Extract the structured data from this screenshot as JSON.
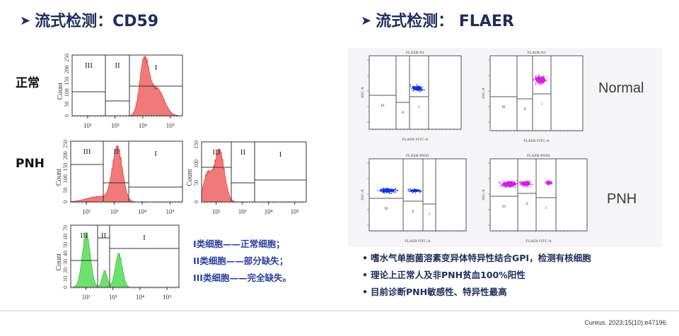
{
  "left": {
    "title": "流式检测：CD59",
    "row_labels": {
      "normal": "正常",
      "pnh": "PNH"
    },
    "histogram": {
      "ylabel": "Count",
      "gates": [
        "III",
        "II",
        "I"
      ],
      "xticks": [
        "10²",
        "10³",
        "10⁴",
        "10⁵"
      ],
      "yticks_red": [
        "0",
        "50",
        "100",
        "150",
        "200",
        "250"
      ],
      "yticks_red_small": [
        "0",
        "50",
        "100",
        "150"
      ],
      "yticks_green": [
        "0",
        "10",
        "20",
        "30",
        "40",
        "50",
        "60",
        "70"
      ],
      "fill_red": "#f07a7a",
      "fill_green": "#6ee06e"
    },
    "legend": [
      "I类细胞——正常细胞；",
      "II类细胞——部分缺失；",
      "III类细胞——完全缺失。"
    ]
  },
  "right": {
    "title": "流式检测：  FLAER",
    "plots": {
      "normal_titles": [
        "FLAER-N1",
        "FLAER-N1"
      ],
      "pnh_titles": [
        "FLAER-PNH1",
        "FLAER-PNH1"
      ],
      "xlabel": "FLAER FITC-A",
      "ylabel": "SSC-A",
      "gates": [
        "III",
        "II",
        "I"
      ],
      "blue": "#1030e0",
      "magenta": "#d020e0"
    },
    "row_labels": {
      "normal": "Normal",
      "pnh": "PNH"
    },
    "bullets": [
      "嗜水气单胞菌溶素变异体特异性结合GPI，检测有核细胞",
      "理论上正常人及非PNH贫血100%阳性",
      "目前诊断PNH敏感性、特异性最高"
    ]
  },
  "citation": "Cureus. 2023;15(10):e47196."
}
